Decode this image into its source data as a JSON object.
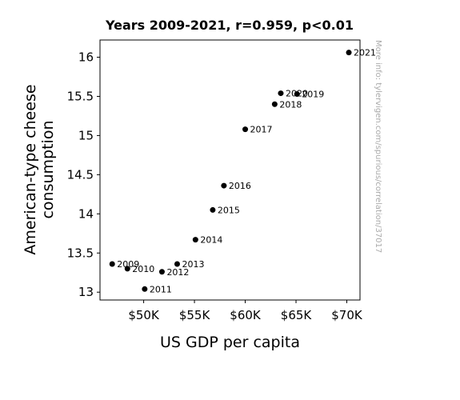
{
  "chart_data": {
    "type": "scatter",
    "title": "Years 2009-2021, r=0.959, p<0.01",
    "xlabel": "US GDP per capita",
    "ylabel_lines": [
      "American-type cheese",
      "consumption"
    ],
    "xlim": [
      45700,
      71300
    ],
    "ylim": [
      12.9,
      16.22
    ],
    "x_ticks": [
      {
        "value": 50000,
        "label": "$50K"
      },
      {
        "value": 55000,
        "label": "$55K"
      },
      {
        "value": 60000,
        "label": "$60K"
      },
      {
        "value": 65000,
        "label": "$65K"
      },
      {
        "value": 70000,
        "label": "$70K"
      }
    ],
    "y_ticks": [
      {
        "value": 13,
        "label": "13"
      },
      {
        "value": 13.5,
        "label": "13.5"
      },
      {
        "value": 14,
        "label": "14"
      },
      {
        "value": 14.5,
        "label": "14.5"
      },
      {
        "value": 15,
        "label": "15"
      },
      {
        "value": 15.5,
        "label": "15.5"
      },
      {
        "value": 16,
        "label": "16"
      }
    ],
    "points": [
      {
        "label": "2009",
        "x": 46900,
        "y": 13.36
      },
      {
        "label": "2010",
        "x": 48400,
        "y": 13.3
      },
      {
        "label": "2011",
        "x": 50100,
        "y": 13.04
      },
      {
        "label": "2012",
        "x": 51800,
        "y": 13.26
      },
      {
        "label": "2013",
        "x": 53300,
        "y": 13.36
      },
      {
        "label": "2014",
        "x": 55100,
        "y": 13.67
      },
      {
        "label": "2015",
        "x": 56800,
        "y": 14.05
      },
      {
        "label": "2016",
        "x": 57900,
        "y": 14.36
      },
      {
        "label": "2017",
        "x": 60000,
        "y": 15.08
      },
      {
        "label": "2018",
        "x": 62900,
        "y": 15.4
      },
      {
        "label": "2019",
        "x": 65100,
        "y": 15.53
      },
      {
        "label": "2020",
        "x": 63500,
        "y": 15.54
      },
      {
        "label": "2021",
        "x": 70200,
        "y": 16.06
      }
    ],
    "point_color": "#000000",
    "grid": false,
    "legend": "none"
  },
  "watermark": "More info: tylervigen.com/spurious/correlation/37017"
}
